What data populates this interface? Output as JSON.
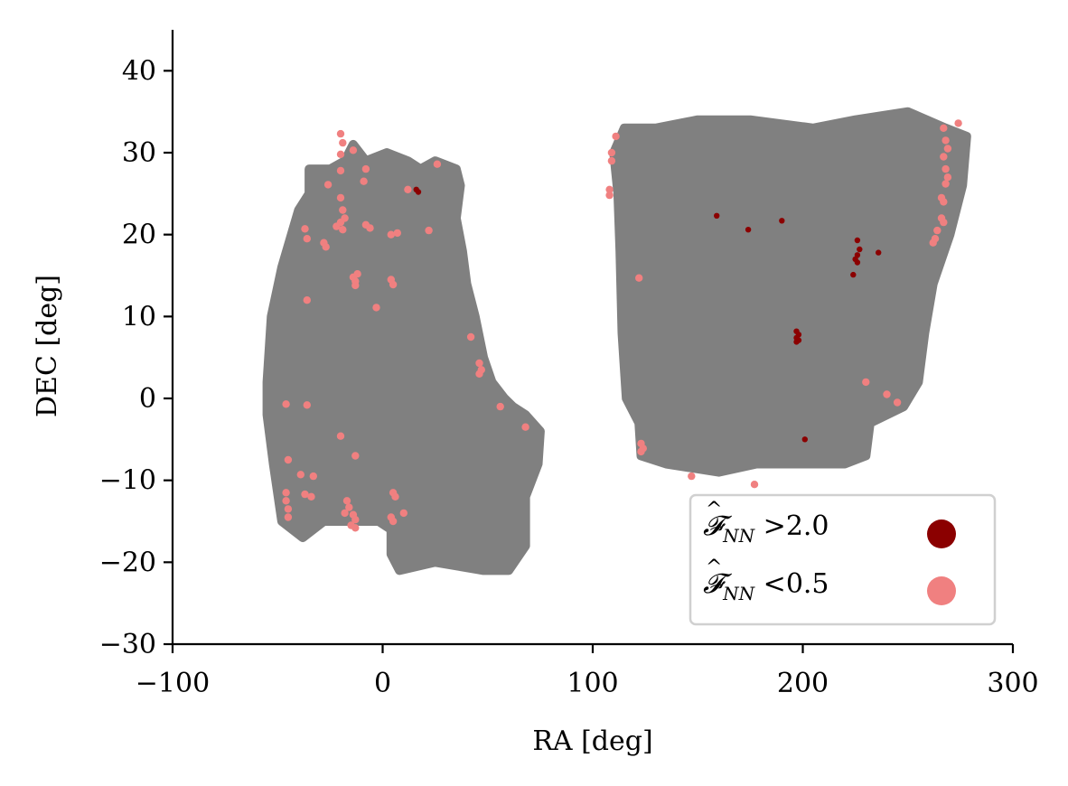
{
  "chart_data": {
    "type": "scatter",
    "title": "",
    "xlabel": "RA [deg]",
    "ylabel": "DEC [deg]",
    "xlim": [
      -100,
      300
    ],
    "ylim": [
      -30,
      45
    ],
    "xticks": [
      -100,
      0,
      100,
      200,
      300
    ],
    "yticks": [
      -30,
      -20,
      -10,
      0,
      10,
      20,
      30,
      40
    ],
    "xtick_labels": [
      "−100",
      "0",
      "100",
      "200",
      "300"
    ],
    "ytick_labels": [
      "−30",
      "−20",
      "−10",
      "0",
      "10",
      "20",
      "30",
      "40"
    ],
    "grid": false,
    "legend_position": "lower-right",
    "footprint": {
      "color": "#808080",
      "regions": [
        [
          [
            -55,
            2
          ],
          [
            -53,
            10
          ],
          [
            -48,
            16
          ],
          [
            -40,
            23
          ],
          [
            -35,
            25
          ],
          [
            -35,
            28
          ],
          [
            -25,
            28
          ],
          [
            -18,
            29
          ],
          [
            -14,
            31
          ],
          [
            -8,
            29
          ],
          [
            2,
            30
          ],
          [
            12,
            29
          ],
          [
            18,
            28
          ],
          [
            25,
            29
          ],
          [
            35,
            28
          ],
          [
            37,
            26
          ],
          [
            35,
            22
          ],
          [
            38,
            18
          ],
          [
            40,
            14
          ],
          [
            44,
            10
          ],
          [
            48,
            5
          ],
          [
            52,
            2
          ],
          [
            58,
            0
          ],
          [
            62,
            -1
          ],
          [
            68,
            -2
          ],
          [
            75,
            -4
          ],
          [
            74,
            -8
          ],
          [
            68,
            -12
          ],
          [
            68,
            -18
          ],
          [
            60,
            -21
          ],
          [
            48,
            -21
          ],
          [
            25,
            -20
          ],
          [
            8,
            -21
          ],
          [
            4,
            -19
          ],
          [
            4,
            -16
          ],
          [
            -2,
            -15
          ],
          [
            -12,
            -15
          ],
          [
            -28,
            -15
          ],
          [
            -38,
            -17
          ],
          [
            -48,
            -15
          ],
          [
            -52,
            -8
          ],
          [
            -55,
            -2
          ]
        ],
        [
          [
            110,
            30
          ],
          [
            115,
            33
          ],
          [
            130,
            33
          ],
          [
            150,
            34
          ],
          [
            175,
            34
          ],
          [
            205,
            33
          ],
          [
            225,
            34
          ],
          [
            250,
            35
          ],
          [
            268,
            33
          ],
          [
            278,
            32
          ],
          [
            276,
            26
          ],
          [
            270,
            20
          ],
          [
            262,
            14
          ],
          [
            258,
            8
          ],
          [
            255,
            2
          ],
          [
            248,
            -1
          ],
          [
            232,
            -3
          ],
          [
            230,
            -7
          ],
          [
            220,
            -8
          ],
          [
            200,
            -8
          ],
          [
            178,
            -8
          ],
          [
            160,
            -9
          ],
          [
            135,
            -8
          ],
          [
            123,
            -7
          ],
          [
            122,
            -3
          ],
          [
            116,
            0
          ],
          [
            114,
            8
          ],
          [
            113,
            18
          ],
          [
            112,
            25
          ]
        ]
      ]
    },
    "series": [
      {
        "name": "$\\hat{\\mathcal{F}}_{NN}$ >2.0",
        "color": "#8b0000",
        "points": [
          [
            16,
            25.5
          ],
          [
            17,
            25.2
          ],
          [
            159,
            22.3
          ],
          [
            174,
            20.6
          ],
          [
            190,
            21.7
          ],
          [
            226,
            19.3
          ],
          [
            227,
            18.2
          ],
          [
            226,
            17.5
          ],
          [
            225,
            17.0
          ],
          [
            226,
            16.6
          ],
          [
            236,
            17.8
          ],
          [
            224,
            15.1
          ],
          [
            197,
            8.2
          ],
          [
            198,
            7.8
          ],
          [
            197,
            7.4
          ],
          [
            198,
            7.1
          ],
          [
            197,
            6.9
          ],
          [
            201,
            -5.0
          ]
        ]
      },
      {
        "name": "$\\hat{\\mathcal{F}}_{NN}$ <0.5",
        "color": "#f08080",
        "points": [
          [
            -20,
            32.3
          ],
          [
            -19,
            31.2
          ],
          [
            -20,
            29.8
          ],
          [
            -14,
            30.3
          ],
          [
            -20,
            27.8
          ],
          [
            -8,
            28.0
          ],
          [
            -9,
            26.5
          ],
          [
            -26,
            26.1
          ],
          [
            -20,
            24.5
          ],
          [
            -19,
            23.0
          ],
          [
            -18,
            22.0
          ],
          [
            -20,
            21.5
          ],
          [
            -22,
            21.0
          ],
          [
            -19,
            20.6
          ],
          [
            -37,
            20.7
          ],
          [
            -36,
            19.5
          ],
          [
            -28,
            19.0
          ],
          [
            -27,
            18.5
          ],
          [
            -8,
            21.2
          ],
          [
            -6,
            20.8
          ],
          [
            -12,
            15.2
          ],
          [
            -14,
            14.8
          ],
          [
            -13,
            14.3
          ],
          [
            -13,
            13.8
          ],
          [
            4,
            14.5
          ],
          [
            5,
            13.9
          ],
          [
            4,
            20.0
          ],
          [
            7,
            20.2
          ],
          [
            12,
            25.5
          ],
          [
            22,
            20.5
          ],
          [
            26,
            28.6
          ],
          [
            -36,
            12.0
          ],
          [
            -3,
            11.1
          ],
          [
            42,
            7.5
          ],
          [
            46,
            4.3
          ],
          [
            47,
            3.5
          ],
          [
            46,
            3.0
          ],
          [
            -46,
            -0.7
          ],
          [
            -36,
            -0.8
          ],
          [
            56,
            -1.0
          ],
          [
            68,
            -3.5
          ],
          [
            -20,
            -4.6
          ],
          [
            -13,
            -7.0
          ],
          [
            -45,
            -7.5
          ],
          [
            -39,
            -9.3
          ],
          [
            -33,
            -9.5
          ],
          [
            -46,
            -11.5
          ],
          [
            -46,
            -12.5
          ],
          [
            -45,
            -13.5
          ],
          [
            -45,
            -14.5
          ],
          [
            -37,
            -11.7
          ],
          [
            -34,
            -12.0
          ],
          [
            -17,
            -12.5
          ],
          [
            -16,
            -13.3
          ],
          [
            -14,
            -14.2
          ],
          [
            -13,
            -14.8
          ],
          [
            -15,
            -15.5
          ],
          [
            -13,
            -15.8
          ],
          [
            -18,
            -14.0
          ],
          [
            5,
            -11.5
          ],
          [
            6,
            -12.0
          ],
          [
            4,
            -14.5
          ],
          [
            5,
            -15.0
          ],
          [
            10,
            -14.0
          ],
          [
            111,
            32.0
          ],
          [
            109,
            30.0
          ],
          [
            109,
            29.0
          ],
          [
            108,
            25.5
          ],
          [
            108,
            24.8
          ],
          [
            122,
            14.7
          ],
          [
            123,
            -5.5
          ],
          [
            124,
            -6.1
          ],
          [
            123,
            -6.5
          ],
          [
            147,
            -9.5
          ],
          [
            177,
            -10.5
          ],
          [
            230,
            2.0
          ],
          [
            240,
            0.5
          ],
          [
            245,
            -0.5
          ],
          [
            267,
            33.0
          ],
          [
            268,
            31.5
          ],
          [
            269,
            30.5
          ],
          [
            267,
            29.5
          ],
          [
            268,
            28.0
          ],
          [
            269,
            27.0
          ],
          [
            268,
            26.2
          ],
          [
            266,
            24.5
          ],
          [
            267,
            24.0
          ],
          [
            266,
            22.0
          ],
          [
            267,
            21.5
          ],
          [
            264,
            20.5
          ],
          [
            263,
            19.5
          ],
          [
            262,
            19.0
          ],
          [
            274,
            33.6
          ]
        ]
      }
    ]
  }
}
